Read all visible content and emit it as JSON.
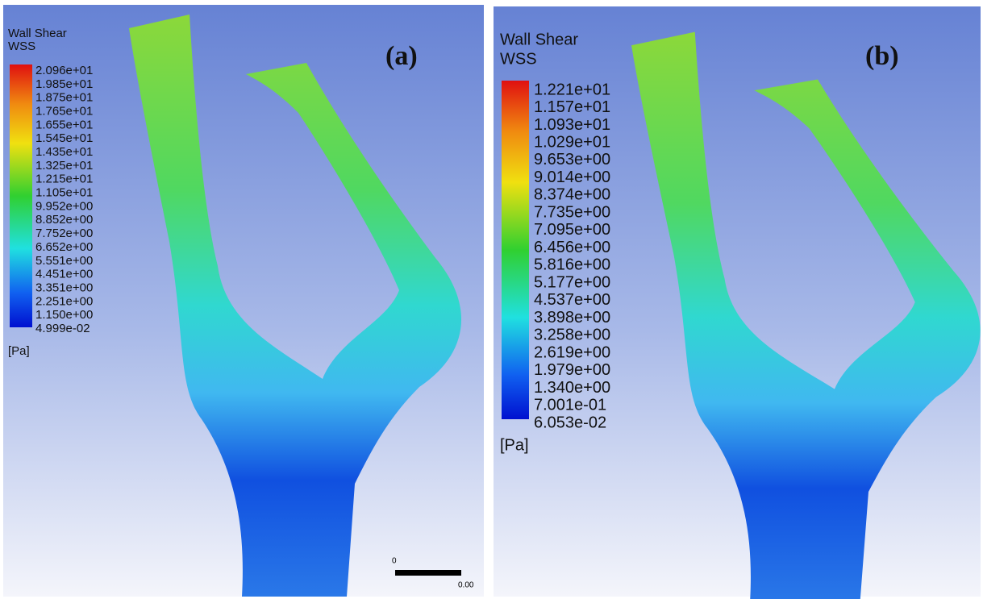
{
  "panels": [
    {
      "label": "(a)",
      "legend": {
        "title": "Wall Shear",
        "subtitle": "WSS",
        "unit": "[Pa]",
        "labels": [
          "2.096e+01",
          "1.985e+01",
          "1.875e+01",
          "1.765e+01",
          "1.655e+01",
          "1.545e+01",
          "1.435e+01",
          "1.325e+01",
          "1.215e+01",
          "1.105e+01",
          "9.952e+00",
          "8.852e+00",
          "7.752e+00",
          "6.652e+00",
          "5.551e+00",
          "4.451e+00",
          "3.351e+00",
          "2.251e+00",
          "1.150e+00",
          "4.999e-02"
        ]
      },
      "scale_bar": {
        "start": "0",
        "end": "0.00"
      }
    },
    {
      "label": "(b)",
      "legend": {
        "title": "Wall Shear",
        "subtitle": "WSS",
        "unit": "[Pa]",
        "labels": [
          "1.221e+01",
          "1.157e+01",
          "1.093e+01",
          "1.029e+01",
          "9.653e+00",
          "9.014e+00",
          "8.374e+00",
          "7.735e+00",
          "7.095e+00",
          "6.456e+00",
          "5.816e+00",
          "5.177e+00",
          "4.537e+00",
          "3.898e+00",
          "3.258e+00",
          "2.619e+00",
          "1.979e+00",
          "1.340e+00",
          "7.001e-01",
          "6.053e-02"
        ]
      }
    }
  ]
}
